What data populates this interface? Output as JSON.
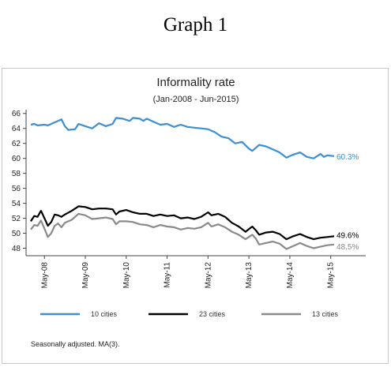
{
  "page": {
    "outer_title": "Graph 1",
    "note": "Seasonally adjusted. MA(3)."
  },
  "chart_data": {
    "type": "line",
    "title": "Informality rate",
    "subtitle": "(Jan-2008 - Jun-2015)",
    "xlabel": "",
    "ylabel": "",
    "x_start": "2008-01",
    "x_end": "2015-06",
    "ylim": [
      47,
      66.5
    ],
    "yticks": [
      48,
      50,
      52,
      54,
      56,
      58,
      60,
      62,
      64,
      66
    ],
    "xticks": [
      {
        "label": "May-08",
        "date": "2008-05"
      },
      {
        "label": "May-09",
        "date": "2009-05"
      },
      {
        "label": "May-10",
        "date": "2010-05"
      },
      {
        "label": "May-11",
        "date": "2011-05"
      },
      {
        "label": "May-12",
        "date": "2012-05"
      },
      {
        "label": "May-13",
        "date": "2013-05"
      },
      {
        "label": "May-14",
        "date": "2014-05"
      },
      {
        "label": "May-15",
        "date": "2015-05"
      }
    ],
    "grid": false,
    "legend_position": "bottom",
    "series": [
      {
        "name": "10 cities",
        "color": "#3a8fd6",
        "end_label": "60.3%",
        "anchors": [
          [
            "2008-01",
            64.5
          ],
          [
            "2008-02",
            64.6
          ],
          [
            "2008-03",
            64.4
          ],
          [
            "2008-05",
            64.5
          ],
          [
            "2008-06",
            64.4
          ],
          [
            "2008-08",
            64.8
          ],
          [
            "2008-10",
            65.2
          ],
          [
            "2008-11",
            64.3
          ],
          [
            "2008-12",
            63.8
          ],
          [
            "2009-02",
            63.9
          ],
          [
            "2009-03",
            64.6
          ],
          [
            "2009-05",
            64.3
          ],
          [
            "2009-07",
            64.0
          ],
          [
            "2009-09",
            64.7
          ],
          [
            "2009-11",
            64.3
          ],
          [
            "2010-01",
            64.6
          ],
          [
            "2010-02",
            65.4
          ],
          [
            "2010-04",
            65.3
          ],
          [
            "2010-06",
            65.0
          ],
          [
            "2010-07",
            65.4
          ],
          [
            "2010-09",
            65.3
          ],
          [
            "2010-10",
            65.0
          ],
          [
            "2010-11",
            65.3
          ],
          [
            "2011-01",
            64.9
          ],
          [
            "2011-03",
            64.5
          ],
          [
            "2011-05",
            64.6
          ],
          [
            "2011-07",
            64.2
          ],
          [
            "2011-09",
            64.5
          ],
          [
            "2011-11",
            64.2
          ],
          [
            "2012-01",
            64.1
          ],
          [
            "2012-03",
            64.0
          ],
          [
            "2012-05",
            63.9
          ],
          [
            "2012-07",
            63.5
          ],
          [
            "2012-09",
            62.9
          ],
          [
            "2012-11",
            62.7
          ],
          [
            "2013-01",
            62.0
          ],
          [
            "2013-03",
            62.2
          ],
          [
            "2013-05",
            61.3
          ],
          [
            "2013-06",
            61.0
          ],
          [
            "2013-08",
            61.8
          ],
          [
            "2013-10",
            61.6
          ],
          [
            "2013-12",
            61.2
          ],
          [
            "2014-02",
            60.8
          ],
          [
            "2014-04",
            60.1
          ],
          [
            "2014-06",
            60.5
          ],
          [
            "2014-08",
            60.8
          ],
          [
            "2014-10",
            60.2
          ],
          [
            "2014-12",
            60.0
          ],
          [
            "2015-02",
            60.6
          ],
          [
            "2015-03",
            60.2
          ],
          [
            "2015-04",
            60.4
          ],
          [
            "2015-06",
            60.3
          ]
        ]
      },
      {
        "name": "23 cities",
        "color": "#000000",
        "end_label": "49.6%",
        "anchors": [
          [
            "2008-01",
            51.6
          ],
          [
            "2008-02",
            52.3
          ],
          [
            "2008-03",
            52.2
          ],
          [
            "2008-04",
            53.0
          ],
          [
            "2008-05",
            52.0
          ],
          [
            "2008-06",
            51.0
          ],
          [
            "2008-07",
            51.5
          ],
          [
            "2008-08",
            52.5
          ],
          [
            "2008-09",
            52.4
          ],
          [
            "2008-10",
            52.2
          ],
          [
            "2008-11",
            52.5
          ],
          [
            "2009-01",
            53.0
          ],
          [
            "2009-03",
            53.6
          ],
          [
            "2009-05",
            53.5
          ],
          [
            "2009-07",
            53.2
          ],
          [
            "2009-09",
            53.3
          ],
          [
            "2009-11",
            53.3
          ],
          [
            "2010-01",
            53.2
          ],
          [
            "2010-02",
            52.5
          ],
          [
            "2010-03",
            52.9
          ],
          [
            "2010-05",
            53.1
          ],
          [
            "2010-07",
            52.8
          ],
          [
            "2010-09",
            52.6
          ],
          [
            "2010-11",
            52.6
          ],
          [
            "2011-01",
            52.3
          ],
          [
            "2011-03",
            52.5
          ],
          [
            "2011-05",
            52.3
          ],
          [
            "2011-07",
            52.4
          ],
          [
            "2011-09",
            52.0
          ],
          [
            "2011-11",
            52.1
          ],
          [
            "2012-01",
            51.9
          ],
          [
            "2012-03",
            52.2
          ],
          [
            "2012-05",
            52.8
          ],
          [
            "2012-06",
            52.4
          ],
          [
            "2012-08",
            52.6
          ],
          [
            "2012-10",
            52.2
          ],
          [
            "2012-12",
            51.4
          ],
          [
            "2013-02",
            50.9
          ],
          [
            "2013-04",
            50.2
          ],
          [
            "2013-06",
            50.9
          ],
          [
            "2013-07",
            50.4
          ],
          [
            "2013-08",
            49.8
          ],
          [
            "2013-10",
            50.1
          ],
          [
            "2013-12",
            50.2
          ],
          [
            "2014-02",
            49.9
          ],
          [
            "2014-04",
            49.2
          ],
          [
            "2014-06",
            49.6
          ],
          [
            "2014-08",
            49.9
          ],
          [
            "2014-10",
            49.5
          ],
          [
            "2014-12",
            49.2
          ],
          [
            "2015-02",
            49.4
          ],
          [
            "2015-04",
            49.5
          ],
          [
            "2015-06",
            49.6
          ]
        ]
      },
      {
        "name": "13 cities",
        "color": "#8a8a8a",
        "end_label": "48.5%",
        "anchors": [
          [
            "2008-01",
            50.5
          ],
          [
            "2008-02",
            51.1
          ],
          [
            "2008-03",
            51.0
          ],
          [
            "2008-04",
            51.7
          ],
          [
            "2008-05",
            50.6
          ],
          [
            "2008-06",
            49.5
          ],
          [
            "2008-07",
            50.0
          ],
          [
            "2008-08",
            51.0
          ],
          [
            "2008-09",
            51.3
          ],
          [
            "2008-10",
            50.8
          ],
          [
            "2008-11",
            51.4
          ],
          [
            "2009-01",
            51.8
          ],
          [
            "2009-03",
            52.6
          ],
          [
            "2009-05",
            52.4
          ],
          [
            "2009-07",
            51.9
          ],
          [
            "2009-09",
            52.0
          ],
          [
            "2009-11",
            52.1
          ],
          [
            "2010-01",
            51.9
          ],
          [
            "2010-02",
            51.2
          ],
          [
            "2010-03",
            51.6
          ],
          [
            "2010-05",
            51.6
          ],
          [
            "2010-07",
            51.5
          ],
          [
            "2010-09",
            51.2
          ],
          [
            "2010-11",
            51.1
          ],
          [
            "2011-01",
            50.8
          ],
          [
            "2011-03",
            51.1
          ],
          [
            "2011-05",
            50.9
          ],
          [
            "2011-07",
            50.8
          ],
          [
            "2011-09",
            50.5
          ],
          [
            "2011-11",
            50.7
          ],
          [
            "2012-01",
            50.6
          ],
          [
            "2012-03",
            50.8
          ],
          [
            "2012-05",
            51.4
          ],
          [
            "2012-06",
            50.9
          ],
          [
            "2012-08",
            51.2
          ],
          [
            "2012-10",
            50.8
          ],
          [
            "2012-12",
            50.2
          ],
          [
            "2013-02",
            49.8
          ],
          [
            "2013-04",
            49.2
          ],
          [
            "2013-06",
            49.8
          ],
          [
            "2013-07",
            49.3
          ],
          [
            "2013-08",
            48.5
          ],
          [
            "2013-10",
            48.7
          ],
          [
            "2013-12",
            48.9
          ],
          [
            "2014-02",
            48.6
          ],
          [
            "2014-04",
            47.9
          ],
          [
            "2014-06",
            48.3
          ],
          [
            "2014-08",
            48.7
          ],
          [
            "2014-10",
            48.3
          ],
          [
            "2014-12",
            48.0
          ],
          [
            "2015-02",
            48.2
          ],
          [
            "2015-04",
            48.4
          ],
          [
            "2015-06",
            48.5
          ]
        ]
      }
    ]
  }
}
